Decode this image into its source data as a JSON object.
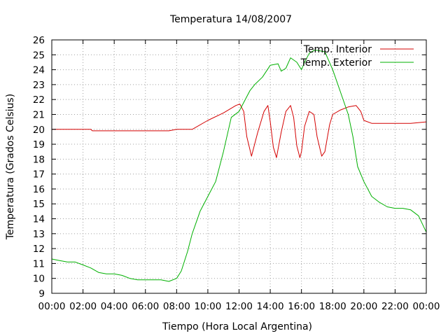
{
  "chart_data": {
    "type": "line",
    "title": "Temperatura 14/08/2007",
    "xlabel": "Tiempo (Hora Local Argentina)",
    "ylabel": "Temperatura (Grados Celsius)",
    "xlim": [
      0,
      24
    ],
    "ylim": [
      9,
      26
    ],
    "x_tick_labels": [
      "00:00",
      "02:00",
      "04:00",
      "06:00",
      "08:00",
      "10:00",
      "12:00",
      "14:00",
      "16:00",
      "18:00",
      "20:00",
      "22:00",
      "00:00"
    ],
    "y_tick_labels": [
      "9",
      "10",
      "11",
      "12",
      "13",
      "14",
      "15",
      "16",
      "17",
      "18",
      "19",
      "20",
      "21",
      "22",
      "23",
      "24",
      "25",
      "26"
    ],
    "grid": true,
    "legend_position": "top-right",
    "series": [
      {
        "name": "Temp. Interior",
        "color": "#d40000",
        "x": [
          0,
          2.5,
          2.6,
          3,
          6,
          7.5,
          8,
          9,
          10,
          11,
          11.8,
          12.05,
          12.3,
          12.5,
          12.8,
          13.2,
          13.6,
          13.85,
          14,
          14.2,
          14.4,
          14.7,
          15,
          15.3,
          15.5,
          15.7,
          15.9,
          16,
          16.2,
          16.5,
          16.8,
          17,
          17.3,
          17.5,
          17.8,
          18,
          18.5,
          19,
          19.5,
          19.8,
          20,
          20.5,
          21,
          22,
          23,
          24
        ],
        "y": [
          20,
          20,
          19.9,
          19.9,
          19.9,
          19.9,
          20,
          20,
          20.6,
          21.1,
          21.6,
          21.7,
          21.2,
          19.5,
          18.2,
          19.8,
          21.2,
          21.6,
          20.5,
          18.8,
          18.1,
          19.8,
          21.2,
          21.6,
          20.8,
          18.9,
          18.1,
          18.5,
          20.2,
          21.2,
          21,
          19.5,
          18.2,
          18.5,
          20.3,
          21,
          21.3,
          21.5,
          21.6,
          21.2,
          20.6,
          20.4,
          20.4,
          20.4,
          20.4,
          20.5
        ]
      },
      {
        "name": "Temp. Exterior",
        "color": "#00b000",
        "x": [
          0,
          0.5,
          1,
          1.5,
          2,
          2.5,
          3,
          3.5,
          4,
          4.5,
          5,
          5.5,
          6,
          6.5,
          7,
          7.5,
          8,
          8.3,
          8.7,
          9,
          9.5,
          10,
          10.5,
          11,
          11.5,
          12,
          12.3,
          12.7,
          13,
          13.5,
          14,
          14.5,
          14.7,
          15,
          15.3,
          15.7,
          16,
          16.2,
          16.5,
          16.8,
          17,
          17.5,
          18,
          18.5,
          19,
          19.3,
          19.6,
          20,
          20.5,
          21,
          21.5,
          22,
          22.5,
          23,
          23.5,
          24
        ],
        "y": [
          11.3,
          11.2,
          11.1,
          11.1,
          10.9,
          10.7,
          10.4,
          10.3,
          10.3,
          10.2,
          10,
          9.9,
          9.9,
          9.9,
          9.9,
          9.8,
          10,
          10.5,
          11.8,
          13,
          14.5,
          15.5,
          16.5,
          18.5,
          20.8,
          21.2,
          21.8,
          22.6,
          23,
          23.5,
          24.3,
          24.4,
          23.9,
          24.1,
          24.8,
          24.5,
          24,
          24.5,
          25.1,
          25.3,
          25.3,
          25.2,
          24,
          22.5,
          21,
          19.5,
          17.5,
          16.5,
          15.5,
          15.1,
          14.8,
          14.7,
          14.7,
          14.6,
          14.2,
          13.1
        ]
      }
    ]
  }
}
